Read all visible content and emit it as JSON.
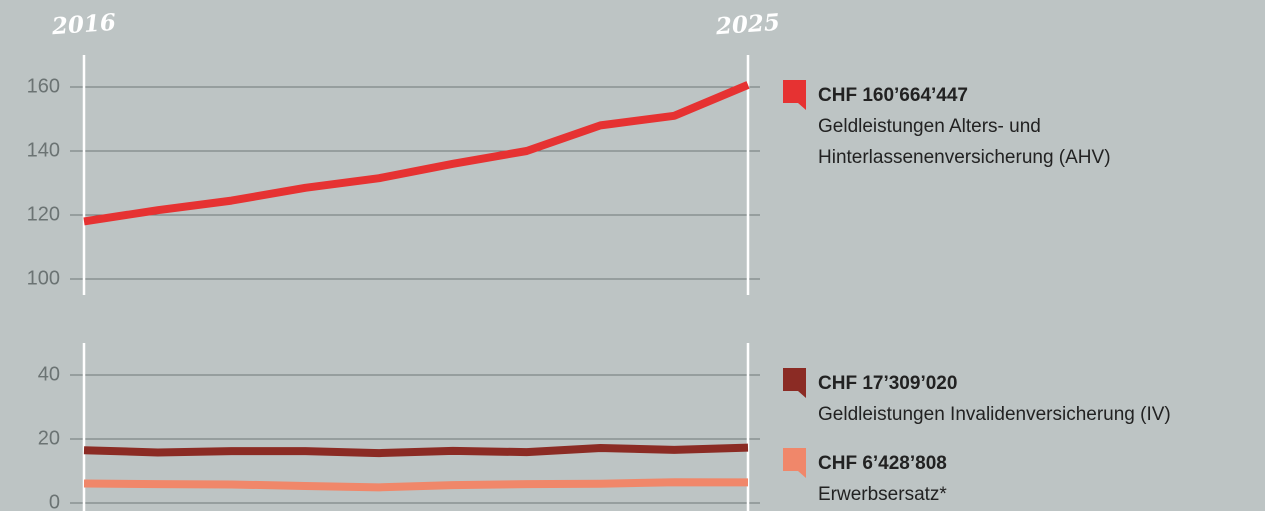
{
  "chart_data": [
    {
      "type": "line",
      "categories": [
        "2016",
        null,
        null,
        null,
        null,
        null,
        null,
        null,
        null,
        "2025"
      ],
      "ylim": [
        95,
        170
      ],
      "yticks": [
        100,
        120,
        140,
        160
      ],
      "grid": true,
      "series": [
        {
          "name": "Geldleistungen Alters- und Hinterlassenenversicherung (AHV)",
          "color": "#e63232",
          "values": [
            118,
            121.5,
            124.5,
            128.5,
            131.5,
            136,
            140,
            148,
            151,
            160.664447
          ],
          "value_labels": [
            null,
            null,
            null,
            null,
            null,
            null,
            null,
            null,
            null,
            "CHF 160’664’447"
          ]
        }
      ]
    },
    {
      "type": "line",
      "ylim": [
        -2.5,
        50
      ],
      "yticks": [
        0,
        20,
        40
      ],
      "grid": true,
      "series": [
        {
          "name": "Geldleistungen Invalidenversicherung (IV)",
          "color": "#8b2b24",
          "values": [
            16.5,
            15.8,
            16.2,
            16.2,
            15.6,
            16.3,
            15.9,
            17.2,
            16.6,
            17.30902
          ],
          "value_labels": [
            null,
            null,
            null,
            null,
            null,
            null,
            null,
            null,
            null,
            "CHF 17’309’020"
          ]
        },
        {
          "name": "Erwerbsersatz*",
          "color": "#f0876a",
          "values": [
            6.1,
            5.9,
            5.8,
            5.3,
            4.9,
            5.6,
            5.9,
            6.0,
            6.5,
            6.428808
          ],
          "value_labels": [
            null,
            null,
            null,
            null,
            null,
            null,
            null,
            null,
            null,
            "CHF 6’428’808"
          ]
        }
      ]
    }
  ]
}
